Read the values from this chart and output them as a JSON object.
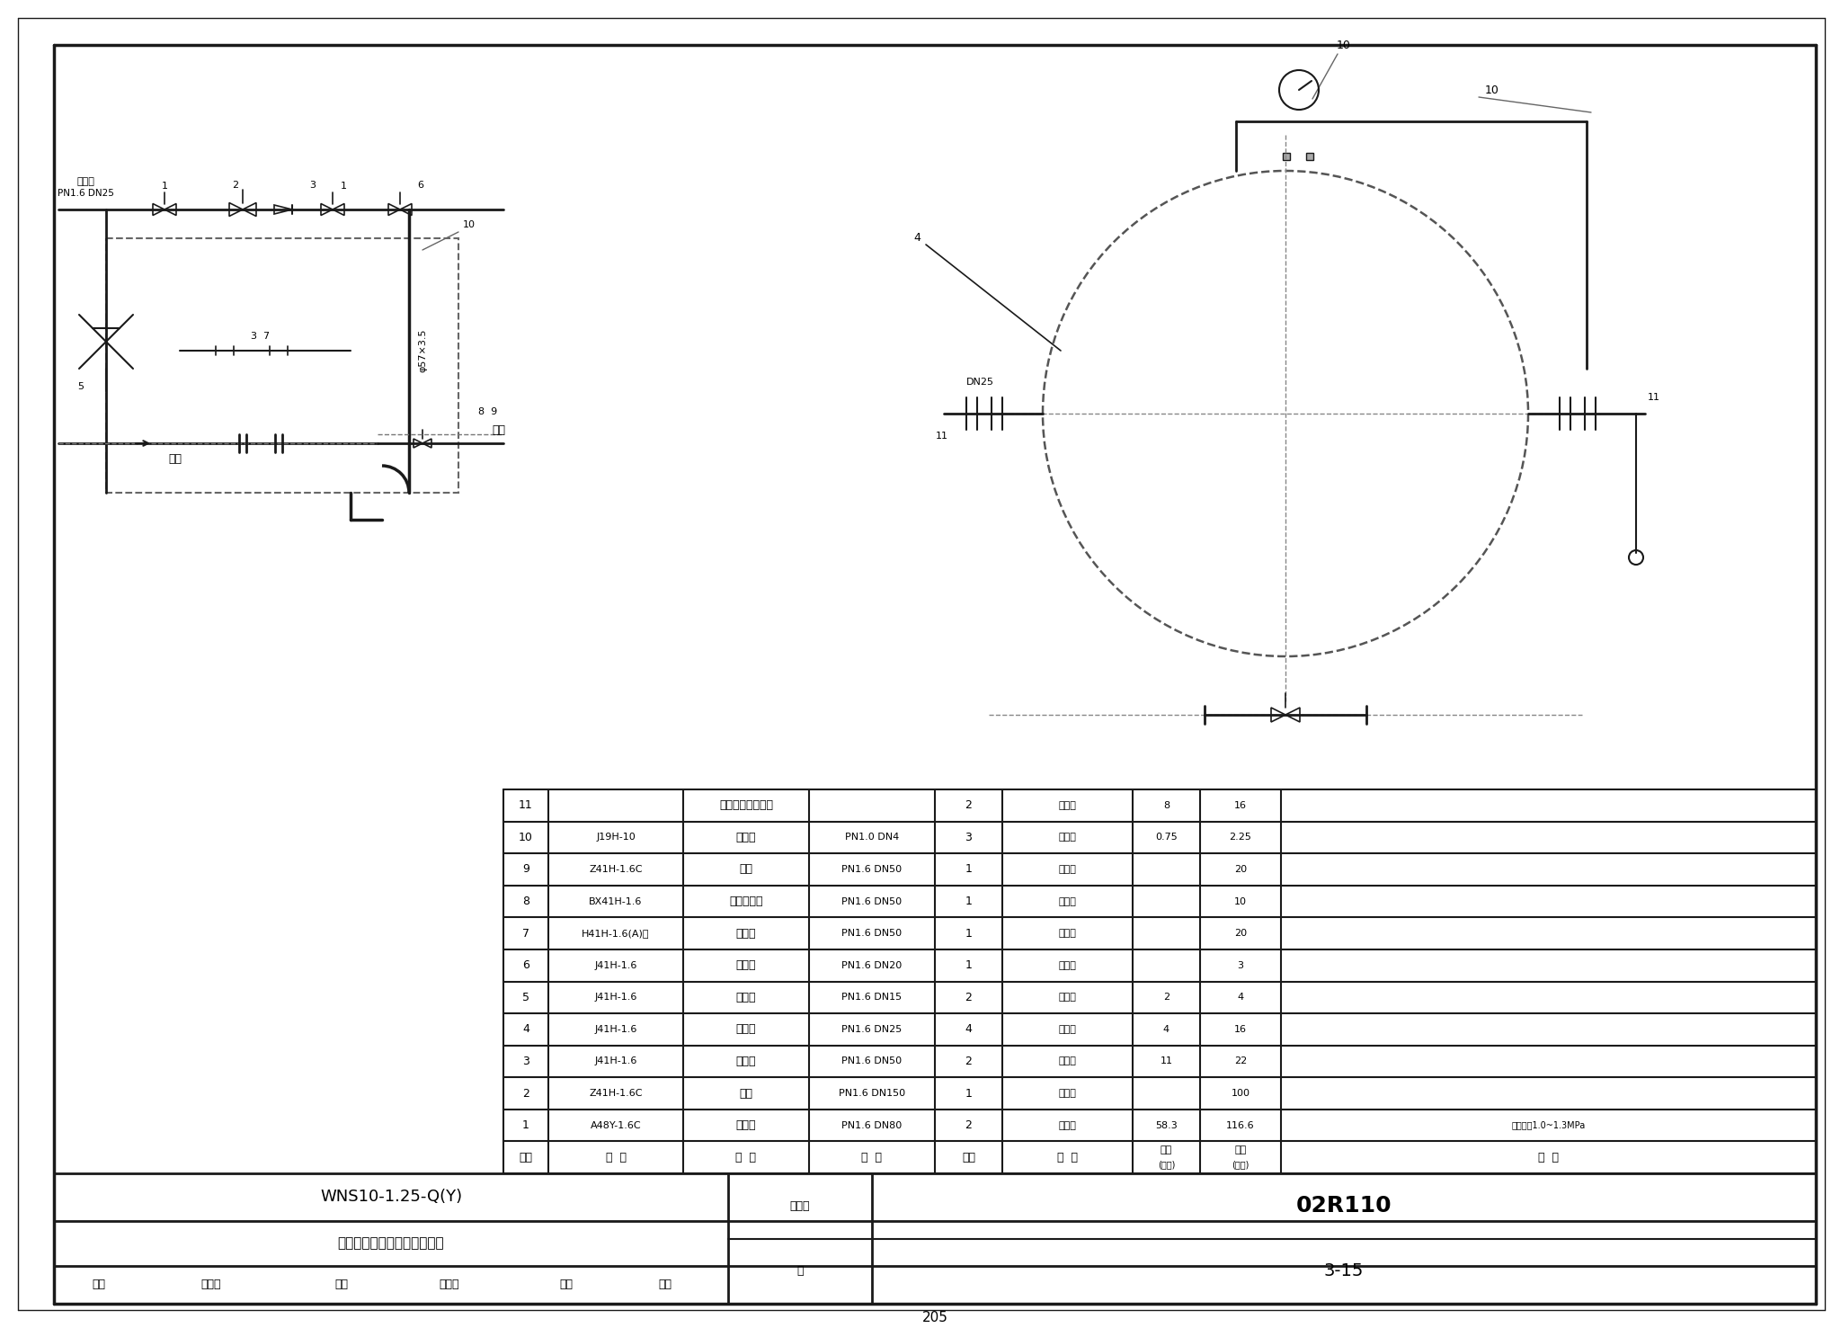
{
  "page_bg": "#ffffff",
  "border_color": "#000000",
  "title": "WNS10-1.25-Q(Y)",
  "subtitle": "蒸汽锅炉管道、阀门、仪表图",
  "atlas_no": "02R110",
  "page_no": "3-15",
  "page_num": "205",
  "table_rows": [
    {
      "seq": "11",
      "code": "",
      "name": "钙法兰平板水位计",
      "spec": "",
      "qty": "2",
      "material": "装配件",
      "unit_wt": "8",
      "total_wt": "16",
      "remark": ""
    },
    {
      "seq": "10",
      "code": "J19H-10",
      "name": "三通阀",
      "spec": "PN1.0 DN4",
      "qty": "3",
      "material": "装配件",
      "unit_wt": "0.75",
      "total_wt": "2.25",
      "remark": ""
    },
    {
      "seq": "9",
      "code": "Z41H-1.6C",
      "name": "闸阀",
      "spec": "PN1.6 DN50",
      "qty": "1",
      "material": "装配件",
      "unit_wt": "",
      "total_wt": "20",
      "remark": ""
    },
    {
      "seq": "8",
      "code": "BX41H-1.6",
      "name": "快速排污阀",
      "spec": "PN1.6 DN50",
      "qty": "1",
      "material": "装配件",
      "unit_wt": "",
      "total_wt": "10",
      "remark": ""
    },
    {
      "seq": "7",
      "code": "H41H-1.6(A)式",
      "name": "止回阀",
      "spec": "PN1.6 DN50",
      "qty": "1",
      "material": "装配件",
      "unit_wt": "",
      "total_wt": "20",
      "remark": ""
    },
    {
      "seq": "6",
      "code": "J41H-1.6",
      "name": "截止阀",
      "spec": "PN1.6 DN20",
      "qty": "1",
      "material": "装配件",
      "unit_wt": "",
      "total_wt": "3",
      "remark": ""
    },
    {
      "seq": "5",
      "code": "J41H-1.6",
      "name": "截止阀",
      "spec": "PN1.6 DN15",
      "qty": "2",
      "material": "装配件",
      "unit_wt": "2",
      "total_wt": "4",
      "remark": ""
    },
    {
      "seq": "4",
      "code": "J41H-1.6",
      "name": "截止阀",
      "spec": "PN1.6 DN25",
      "qty": "4",
      "material": "装配件",
      "unit_wt": "4",
      "total_wt": "16",
      "remark": ""
    },
    {
      "seq": "3",
      "code": "J41H-1.6",
      "name": "截止阀",
      "spec": "PN1.6 DN50",
      "qty": "2",
      "material": "装配件",
      "unit_wt": "11",
      "total_wt": "22",
      "remark": ""
    },
    {
      "seq": "2",
      "code": "Z41H-1.6C",
      "name": "闸阀",
      "spec": "PN1.6 DN150",
      "qty": "1",
      "material": "装配件",
      "unit_wt": "",
      "total_wt": "100",
      "remark": ""
    },
    {
      "seq": "1",
      "code": "A48Y-1.6C",
      "name": "安全阀",
      "spec": "PN1.6 DN80",
      "qty": "2",
      "material": "装配件",
      "unit_wt": "58.3",
      "total_wt": "116.6",
      "remark": "整定压力1.0~1.3MPa"
    }
  ],
  "line_color": "#1a1a1a",
  "text_color": "#000000",
  "dashed_color": "#555555"
}
